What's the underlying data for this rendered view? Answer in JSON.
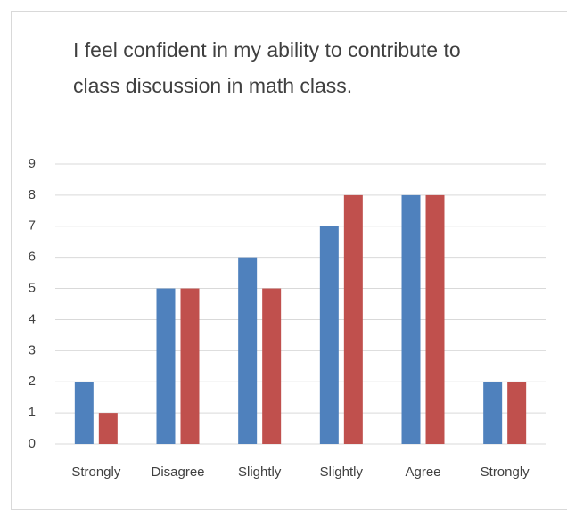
{
  "chart_data": {
    "type": "bar",
    "title": "I feel confident in my ability to contribute to class discussion in math class.",
    "categories": [
      "Strongly",
      "Disagree",
      "Slightly",
      "Slightly",
      "Agree",
      "Strongly"
    ],
    "series": [
      {
        "color": "#4f81bd",
        "values": [
          2,
          5,
          6,
          7,
          8,
          2
        ]
      },
      {
        "color": "#c0504d",
        "values": [
          1,
          5,
          5,
          8,
          8,
          2
        ]
      }
    ],
    "ylim": [
      0,
      9
    ],
    "yticks": [
      0,
      1,
      2,
      3,
      4,
      5,
      6,
      7,
      8,
      9
    ],
    "grid": true
  }
}
